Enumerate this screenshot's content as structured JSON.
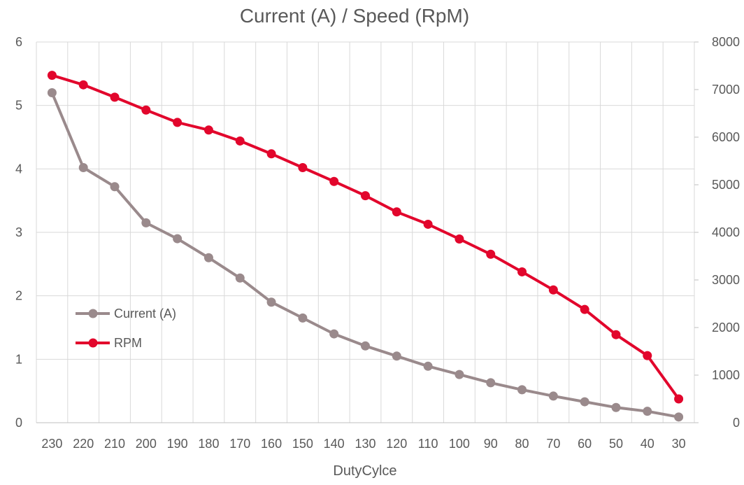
{
  "chart_data": {
    "type": "line",
    "title": "Current (A) / Speed (RpM)",
    "xlabel": "DutyCylce",
    "categories": [
      "230",
      "220",
      "210",
      "200",
      "190",
      "180",
      "170",
      "160",
      "150",
      "140",
      "130",
      "120",
      "110",
      "100",
      "90",
      "80",
      "70",
      "60",
      "50",
      "40",
      "30"
    ],
    "y_left": {
      "ylim": [
        0,
        6
      ],
      "ticks": [
        "0",
        "1",
        "2",
        "3",
        "4",
        "5",
        "6"
      ]
    },
    "y_right": {
      "ylim": [
        0,
        8000
      ],
      "ticks": [
        "0",
        "1000",
        "2000",
        "3000",
        "4000",
        "5000",
        "6000",
        "7000",
        "8000"
      ]
    },
    "series": [
      {
        "name": "Current (A)",
        "axis": "left",
        "color": "#9a8a8c",
        "values": [
          5.2,
          4.02,
          3.72,
          3.15,
          2.9,
          2.6,
          2.28,
          1.9,
          1.65,
          1.4,
          1.21,
          1.05,
          0.89,
          0.76,
          0.63,
          0.52,
          0.42,
          0.33,
          0.24,
          0.18,
          0.09
        ]
      },
      {
        "name": "RPM",
        "axis": "right",
        "color": "#e2062c",
        "values": [
          7300,
          7100,
          6840,
          6570,
          6310,
          6150,
          5920,
          5650,
          5360,
          5070,
          4770,
          4430,
          4170,
          3860,
          3540,
          3170,
          2790,
          2380,
          1850,
          1410,
          500
        ]
      }
    ],
    "grid": true,
    "legend_position": "left-lower"
  }
}
